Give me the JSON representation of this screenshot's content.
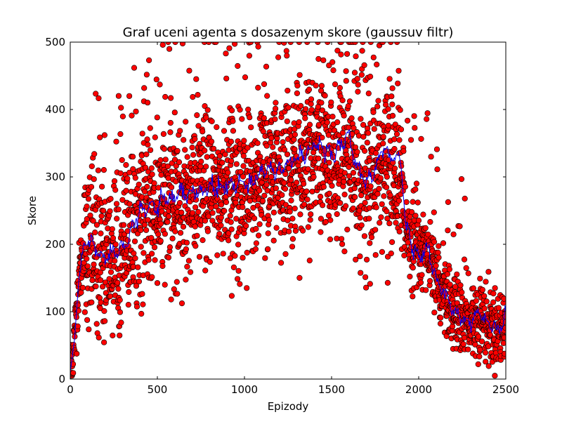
{
  "chart_data": {
    "type": "scatter",
    "title": "Graf uceni agenta s dosazenym skore (gaussuv filtr)",
    "xlabel": "Epizody",
    "ylabel": "Skore",
    "xlim": [
      0,
      2500
    ],
    "ylim": [
      0,
      500
    ],
    "x_ticks": [
      0,
      500,
      1000,
      1500,
      2000,
      2500
    ],
    "y_ticks": [
      0,
      100,
      200,
      300,
      400,
      500
    ],
    "x_tick_labels": [
      "0",
      "500",
      "1000",
      "1500",
      "2000",
      "2500"
    ],
    "y_tick_labels": [
      "0",
      "100",
      "200",
      "300",
      "400",
      "500"
    ],
    "grid": false,
    "colors": {
      "points": "#ff0000",
      "point_edge": "#000000",
      "line": "#0000ff"
    },
    "series": [
      {
        "kind": "scatter",
        "note": "raw per-episode score, approx. trend estimated from the plot",
        "x": [
          0,
          25,
          50,
          75,
          100,
          150,
          200,
          250,
          300,
          350,
          400,
          450,
          500,
          550,
          600,
          650,
          700,
          750,
          800,
          850,
          900,
          950,
          1000,
          1050,
          1100,
          1150,
          1200,
          1250,
          1300,
          1350,
          1400,
          1450,
          1500,
          1550,
          1600,
          1650,
          1700,
          1750,
          1800,
          1850,
          1900,
          1925,
          1950,
          2000,
          2050,
          2100,
          2150,
          2200,
          2250,
          2300,
          2350,
          2400,
          2450,
          2500
        ],
        "y": [
          10,
          60,
          150,
          190,
          200,
          185,
          180,
          185,
          195,
          215,
          240,
          250,
          255,
          262,
          265,
          270,
          272,
          275,
          278,
          280,
          282,
          285,
          285,
          290,
          300,
          305,
          305,
          310,
          315,
          315,
          325,
          330,
          325,
          330,
          335,
          300,
          280,
          300,
          320,
          310,
          300,
          220,
          200,
          180,
          190,
          150,
          120,
          100,
          90,
          85,
          95,
          80,
          75,
          80
        ]
      },
      {
        "kind": "line",
        "note": "gaussian filtered score (approx.)",
        "x": [
          0,
          25,
          50,
          75,
          100,
          150,
          200,
          250,
          300,
          350,
          400,
          450,
          500,
          550,
          600,
          650,
          700,
          750,
          800,
          850,
          900,
          950,
          1000,
          1050,
          1100,
          1150,
          1200,
          1250,
          1300,
          1350,
          1400,
          1450,
          1500,
          1550,
          1600,
          1650,
          1700,
          1750,
          1800,
          1850,
          1900,
          1925,
          1950,
          2000,
          2050,
          2100,
          2150,
          2200,
          2250,
          2300,
          2350,
          2400,
          2450,
          2500
        ],
        "y": [
          10,
          60,
          150,
          190,
          210,
          190,
          182,
          188,
          200,
          220,
          245,
          255,
          258,
          265,
          268,
          275,
          275,
          278,
          285,
          282,
          285,
          288,
          288,
          295,
          310,
          312,
          312,
          318,
          325,
          330,
          350,
          345,
          335,
          345,
          360,
          310,
          290,
          310,
          340,
          330,
          320,
          230,
          205,
          185,
          195,
          145,
          125,
          100,
          90,
          82,
          100,
          80,
          75,
          85
        ]
      }
    ]
  }
}
